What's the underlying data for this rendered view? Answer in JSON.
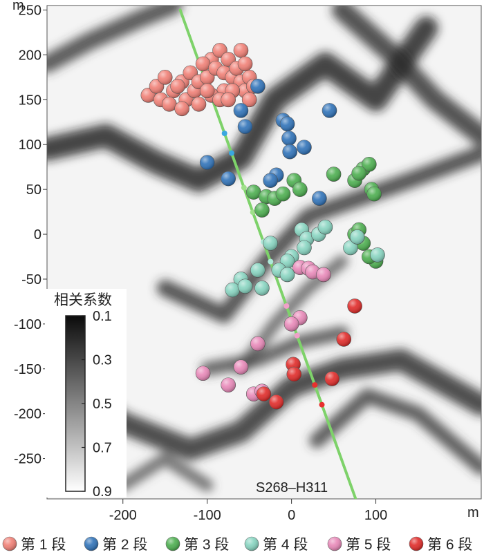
{
  "chart_data": {
    "type": "scatter",
    "x_unit": "m",
    "y_unit": "m",
    "xlim": [
      -290,
      225
    ],
    "ylim": [
      -295,
      255
    ],
    "x_ticks": [
      -200,
      -100,
      0,
      100
    ],
    "y_ticks": [
      250,
      200,
      150,
      100,
      50,
      0,
      -50,
      -100,
      -150,
      -200,
      -250
    ],
    "well_label": "S268–H311",
    "well_trajectory": [
      [
        -132,
        250
      ],
      [
        78,
        -300
      ]
    ],
    "colorbar": {
      "title": "相关系数",
      "tick_labels": [
        "0.1",
        "0.3",
        "0.5",
        "0.7",
        "0.9"
      ],
      "range": [
        0.1,
        0.9
      ],
      "colors": [
        "#0b0b0b",
        "#ffffff"
      ]
    },
    "series": [
      {
        "name": "第 1 段",
        "color": "#f07f75",
        "points": [
          [
            -170,
            155
          ],
          [
            -160,
            165
          ],
          [
            -150,
            175
          ],
          [
            -155,
            150
          ],
          [
            -140,
            160
          ],
          [
            -130,
            170
          ],
          [
            -145,
            145
          ],
          [
            -125,
            150
          ],
          [
            -115,
            160
          ],
          [
            -120,
            180
          ],
          [
            -110,
            170
          ],
          [
            -100,
            175
          ],
          [
            -95,
            195
          ],
          [
            -105,
            190
          ],
          [
            -90,
            185
          ],
          [
            -85,
            205
          ],
          [
            -80,
            180
          ],
          [
            -75,
            195
          ],
          [
            -70,
            175
          ],
          [
            -65,
            185
          ],
          [
            -60,
            170
          ],
          [
            -55,
            160
          ],
          [
            -50,
            175
          ],
          [
            -60,
            205
          ],
          [
            -55,
            190
          ],
          [
            -45,
            165
          ],
          [
            -80,
            160
          ],
          [
            -95,
            155
          ],
          [
            -110,
            145
          ],
          [
            -130,
            140
          ],
          [
            -85,
            150
          ],
          [
            -70,
            160
          ],
          [
            -50,
            150
          ],
          [
            -135,
            165
          ],
          [
            -100,
            160
          ],
          [
            -75,
            150
          ]
        ]
      },
      {
        "name": "第 2 段",
        "color": "#2f72b8",
        "points": [
          [
            -40,
            165
          ],
          [
            -60,
            138
          ],
          [
            -55,
            120
          ],
          [
            -10,
            127
          ],
          [
            -5,
            123
          ],
          [
            45,
            138
          ],
          [
            -3,
            107
          ],
          [
            -2,
            92
          ],
          [
            15,
            97
          ],
          [
            -100,
            80
          ],
          [
            -18,
            66
          ],
          [
            -25,
            60
          ],
          [
            33,
            40
          ],
          [
            -75,
            62
          ]
        ]
      },
      {
        "name": "第 3 段",
        "color": "#4cae4f",
        "points": [
          [
            -45,
            47
          ],
          [
            -30,
            42
          ],
          [
            -20,
            40
          ],
          [
            -10,
            45
          ],
          [
            3,
            60
          ],
          [
            10,
            50
          ],
          [
            50,
            67
          ],
          [
            75,
            60
          ],
          [
            85,
            73
          ],
          [
            92,
            78
          ],
          [
            80,
            68
          ],
          [
            95,
            50
          ],
          [
            98,
            45
          ],
          [
            -35,
            27
          ],
          [
            75,
            0
          ],
          [
            80,
            5
          ],
          [
            85,
            -10
          ],
          [
            100,
            -30
          ],
          [
            92,
            -25
          ]
        ]
      },
      {
        "name": "第 4 段",
        "color": "#87d4c0",
        "points": [
          [
            12,
            5
          ],
          [
            18,
            -5
          ],
          [
            32,
            0
          ],
          [
            40,
            8
          ],
          [
            15,
            -15
          ],
          [
            -25,
            -10
          ],
          [
            0,
            -25
          ],
          [
            -5,
            -30
          ],
          [
            -15,
            -40
          ],
          [
            -40,
            -40
          ],
          [
            -60,
            -50
          ],
          [
            -70,
            -62
          ],
          [
            -55,
            -58
          ],
          [
            -35,
            -60
          ],
          [
            -5,
            -45
          ],
          [
            70,
            -15
          ],
          [
            78,
            -3
          ],
          [
            102,
            -23
          ]
        ]
      },
      {
        "name": "第 5 段",
        "color": "#e888b8",
        "points": [
          [
            10,
            -37
          ],
          [
            20,
            -38
          ],
          [
            25,
            -42
          ],
          [
            38,
            -45
          ],
          [
            -40,
            -122
          ],
          [
            10,
            -93
          ],
          [
            0,
            -100
          ],
          [
            -105,
            -155
          ],
          [
            -75,
            -168
          ],
          [
            -60,
            -148
          ],
          [
            -45,
            -178
          ],
          [
            -35,
            -175
          ]
        ]
      },
      {
        "name": "第 6 段",
        "color": "#e02a28",
        "points": [
          [
            75,
            -80
          ],
          [
            62,
            -117
          ],
          [
            2,
            -145
          ],
          [
            3,
            -156
          ],
          [
            48,
            -161
          ],
          [
            -33,
            -178
          ],
          [
            -18,
            -187
          ]
        ]
      }
    ]
  }
}
